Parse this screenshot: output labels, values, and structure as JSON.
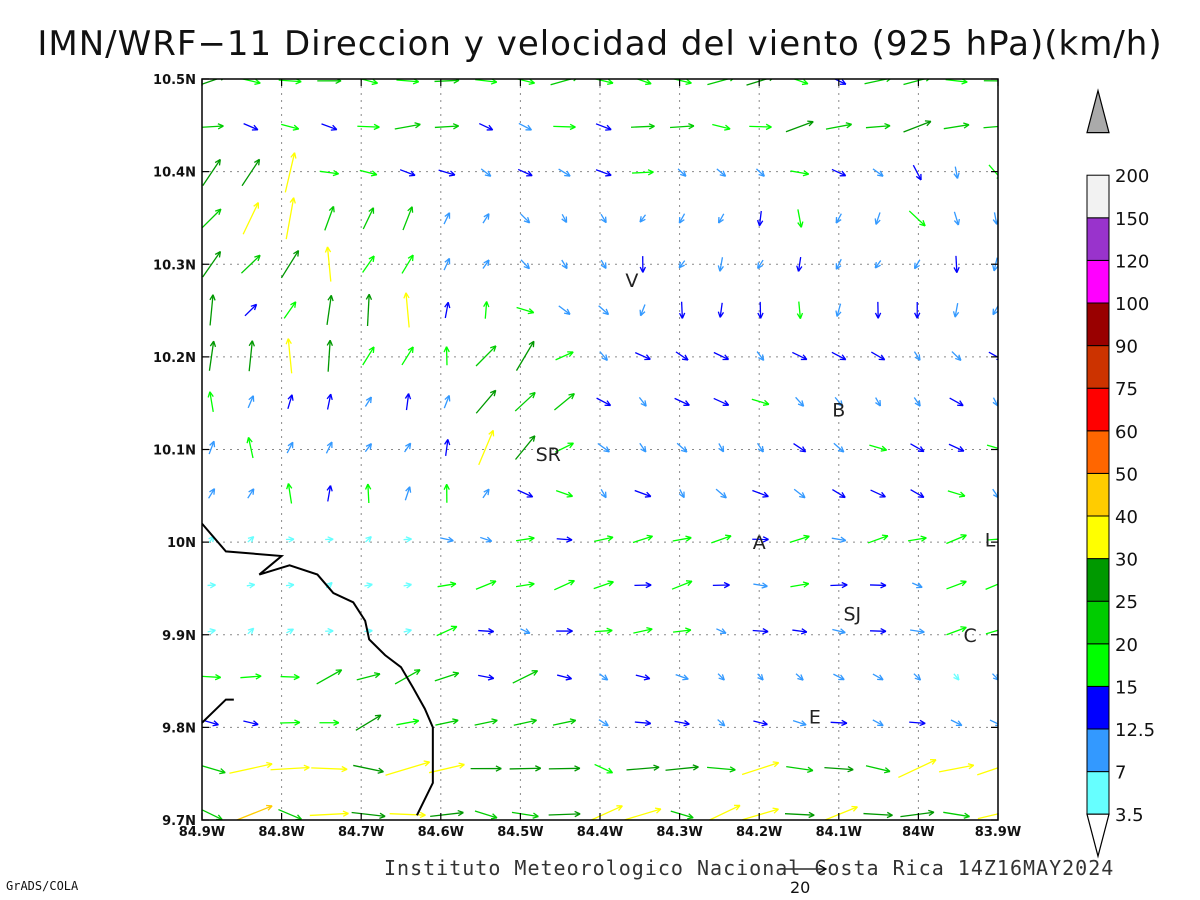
{
  "header": {
    "title": "IMN/WRF−11 Direccion y velocidad del viento (925 hPa)(km/h)"
  },
  "footer": {
    "institution": "Instituto Meteorologico Nacional Costa Rica 14Z16MAY2024",
    "software": "GrADS/COLA",
    "reference_vector_value": "20"
  },
  "chart_data": {
    "type": "vector_field",
    "title": "IMN/WRF−11 Direccion y velocidad del viento (925 hPa)(km/h)",
    "xlim": [
      -84.9,
      -83.9
    ],
    "ylim": [
      9.7,
      10.5
    ],
    "x_ticks": [
      {
        "value": -84.9,
        "label": "84.9W"
      },
      {
        "value": -84.8,
        "label": "84.8W"
      },
      {
        "value": -84.7,
        "label": "84.7W"
      },
      {
        "value": -84.6,
        "label": "84.6W"
      },
      {
        "value": -84.5,
        "label": "84.5W"
      },
      {
        "value": -84.4,
        "label": "84.4W"
      },
      {
        "value": -84.3,
        "label": "84.3W"
      },
      {
        "value": -84.2,
        "label": "84.2W"
      },
      {
        "value": -84.1,
        "label": "84.1W"
      },
      {
        "value": -84.0,
        "label": "84W"
      },
      {
        "value": -83.9,
        "label": "83.9W"
      }
    ],
    "y_ticks": [
      {
        "value": 9.7,
        "label": "9.7N"
      },
      {
        "value": 9.8,
        "label": "9.8N"
      },
      {
        "value": 9.9,
        "label": "9.9N"
      },
      {
        "value": 10.0,
        "label": "10N"
      },
      {
        "value": 10.1,
        "label": "10.1N"
      },
      {
        "value": 10.2,
        "label": "10.2N"
      },
      {
        "value": 10.3,
        "label": "10.3N"
      },
      {
        "value": 10.4,
        "label": "10.4N"
      },
      {
        "value": 10.5,
        "label": "10.5N"
      }
    ],
    "grid": true,
    "colorbar": {
      "labels": [
        "3.5",
        "7",
        "12.5",
        "15",
        "20",
        "25",
        "30",
        "40",
        "50",
        "60",
        "75",
        "90",
        "100",
        "120",
        "150",
        "200"
      ],
      "colors": [
        "#66ffff",
        "#3399ff",
        "#0000ff",
        "#00ff00",
        "#00cc00",
        "#009900",
        "#ffff00",
        "#ffcc00",
        "#ff6600",
        "#ff0000",
        "#cc3300",
        "#990000",
        "#ff00ff",
        "#9933cc",
        "#f2f2f2",
        "#aaaaaa"
      ]
    },
    "stations": [
      {
        "label": "V",
        "lon": -84.36,
        "lat": 10.283
      },
      {
        "label": "SR",
        "lon": -84.465,
        "lat": 10.095
      },
      {
        "label": "B",
        "lon": -84.1,
        "lat": 10.143
      },
      {
        "label": "A",
        "lon": -84.2,
        "lat": 10.0
      },
      {
        "label": "SJ",
        "lon": -84.083,
        "lat": 9.923
      },
      {
        "label": "C",
        "lon": -83.935,
        "lat": 9.9
      },
      {
        "label": "E",
        "lon": -84.13,
        "lat": 9.812
      },
      {
        "label": "L",
        "lon": -83.91,
        "lat": 10.003
      }
    ],
    "coastline": [
      [
        -84.9,
        10.02
      ],
      [
        -84.87,
        9.99
      ],
      [
        -84.8,
        9.985
      ],
      [
        -84.828,
        9.965
      ],
      [
        -84.79,
        9.975
      ],
      [
        -84.755,
        9.965
      ],
      [
        -84.735,
        9.945
      ],
      [
        -84.71,
        9.935
      ],
      [
        -84.695,
        9.915
      ],
      [
        -84.69,
        9.895
      ],
      [
        -84.67,
        9.878
      ],
      [
        -84.65,
        9.865
      ],
      [
        -84.635,
        9.843
      ],
      [
        -84.62,
        9.82
      ],
      [
        -84.61,
        9.8
      ],
      [
        -84.61,
        9.77
      ],
      [
        -84.61,
        9.74
      ],
      [
        -84.63,
        9.705
      ]
    ],
    "coastline_southwest": [
      [
        -84.9,
        9.805
      ],
      [
        -84.87,
        9.83
      ],
      [
        -84.86,
        9.83
      ]
    ]
  }
}
